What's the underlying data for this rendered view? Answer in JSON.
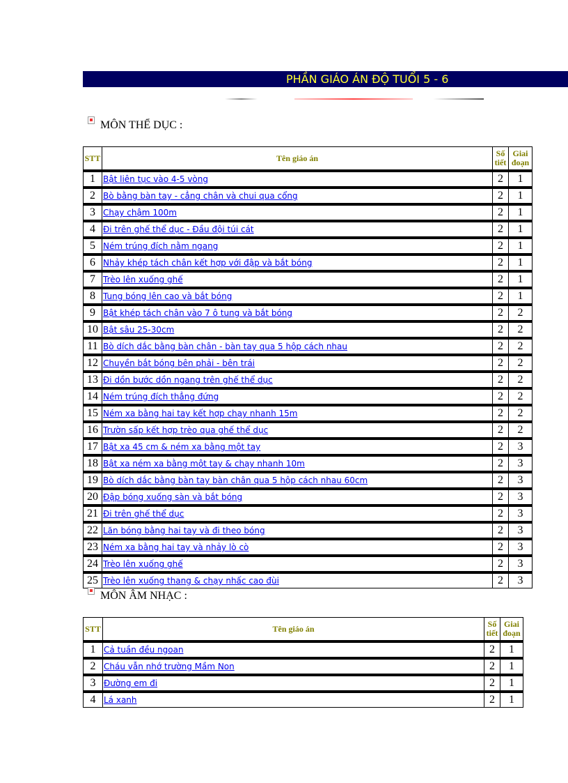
{
  "banner_title": "PHẦN GIÁO ÁN ĐỘ TUỔI 5 - 6",
  "colors": {
    "banner_bg": "#000060",
    "banner_text": "#ffff33",
    "header_text": "#808000",
    "link": "#0000ee"
  },
  "headers": {
    "stt": "STT",
    "name": "Tên giáo án",
    "so_tiet_1": "Số",
    "so_tiet_2": "tiết",
    "giai_doan_1": "Giai",
    "giai_doan_2": "đoạn"
  },
  "sections": [
    {
      "title": "MÔN THỂ DỤC :",
      "rows": [
        {
          "stt": "1",
          "name": "Bật liên tục vào 4-5 vòng",
          "so_tiet": "2",
          "giai_doan": "1"
        },
        {
          "stt": "2",
          "name": "Bò bằng bàn tay - cẳng chân và chui qua cổng",
          "so_tiet": "2",
          "giai_doan": "1"
        },
        {
          "stt": "3",
          "name": "Chạy chậm 100m",
          "so_tiet": "2",
          "giai_doan": "1"
        },
        {
          "stt": "4",
          "name": "Đi trên ghế thể dục - Đầu đội túi cát",
          "so_tiet": "2",
          "giai_doan": "1"
        },
        {
          "stt": "5",
          "name": "Ném trúng đích nằm ngang",
          "so_tiet": "2",
          "giai_doan": "1"
        },
        {
          "stt": "6",
          "name": "Nhảy khép tách chân kết hợp với đập và bắt bóng",
          "so_tiet": "2",
          "giai_doan": "1"
        },
        {
          "stt": "7",
          "name": "Trèo lên xuống ghế",
          "so_tiet": "2",
          "giai_doan": "1"
        },
        {
          "stt": "8",
          "name": "Tung bóng lên cao và bắt bóng",
          "so_tiet": "2",
          "giai_doan": "1"
        },
        {
          "stt": "9",
          "name": "Bật khép tách chân vào 7 ô tung và bắt bóng",
          "so_tiet": "2",
          "giai_doan": "2"
        },
        {
          "stt": "10",
          "name": "Bật sâu 25-30cm",
          "so_tiet": "2",
          "giai_doan": "2"
        },
        {
          "stt": "11",
          "name": "Bò dích dắc bằng bàn chân - bàn tay qua 5 hộp cách nhau",
          "so_tiet": "2",
          "giai_doan": "2"
        },
        {
          "stt": "12",
          "name": "Chuyền bắt bóng bên phải - bên trái",
          "so_tiet": "2",
          "giai_doan": "2"
        },
        {
          "stt": "13",
          "name": "Đi dồn bước dồn ngang trên ghế thể dục",
          "so_tiet": "2",
          "giai_doan": "2"
        },
        {
          "stt": "14",
          "name": "Ném trúng đích thẳng đứng",
          "so_tiet": "2",
          "giai_doan": "2"
        },
        {
          "stt": "15",
          "name": "Ném xa bằng hai tay kết hợp chạy nhanh 15m",
          "so_tiet": "2",
          "giai_doan": "2"
        },
        {
          "stt": "16",
          "name": "Trườn sấp kết hợp trèo qua ghế thể dục",
          "so_tiet": "2",
          "giai_doan": "2"
        },
        {
          "stt": "17",
          "name": "Bật xa 45 cm & ném xa bằng một tay",
          "so_tiet": "2",
          "giai_doan": "3"
        },
        {
          "stt": "18",
          "name": "Bật xa ném xa bằng một tay & chạy nhanh 10m",
          "so_tiet": "2",
          "giai_doan": "3"
        },
        {
          "stt": "19",
          "name": "Bò dích dắc bằng bàn tay bàn chân qua 5 hộp cách nhau 60cm",
          "so_tiet": "2",
          "giai_doan": "3"
        },
        {
          "stt": "20",
          "name": "Đập bóng xuống sàn và bắt bóng",
          "so_tiet": "2",
          "giai_doan": "3"
        },
        {
          "stt": "21",
          "name": "Đi trên ghế thể dục",
          "so_tiet": "2",
          "giai_doan": "3"
        },
        {
          "stt": "22",
          "name": "Lăn bóng bằng hai tay và đi theo bóng",
          "so_tiet": "2",
          "giai_doan": "3"
        },
        {
          "stt": "23",
          "name": "Ném xa bằng hai tay và nhảy lò cò",
          "so_tiet": "2",
          "giai_doan": "3"
        },
        {
          "stt": "24",
          "name": "Trèo lên xuống ghế",
          "so_tiet": "2",
          "giai_doan": "3"
        },
        {
          "stt": "25",
          "name": "Trèo lên xuống thang & chạy nhấc cao đùi",
          "so_tiet": "2",
          "giai_doan": "3"
        }
      ]
    },
    {
      "title": "MÔN ÂM NHẠC :",
      "rows": [
        {
          "stt": "1",
          "name": "Cả tuần đều ngoan",
          "so_tiet": "2",
          "giai_doan": "1"
        },
        {
          "stt": "2",
          "name": "Cháu vẫn nhớ trường Mầm Non",
          "so_tiet": "2",
          "giai_doan": "1"
        },
        {
          "stt": "3",
          "name": "Đường em đi",
          "so_tiet": "2",
          "giai_doan": "1"
        },
        {
          "stt": "4",
          "name": "Lá xanh",
          "so_tiet": "2",
          "giai_doan": "1"
        }
      ]
    }
  ]
}
